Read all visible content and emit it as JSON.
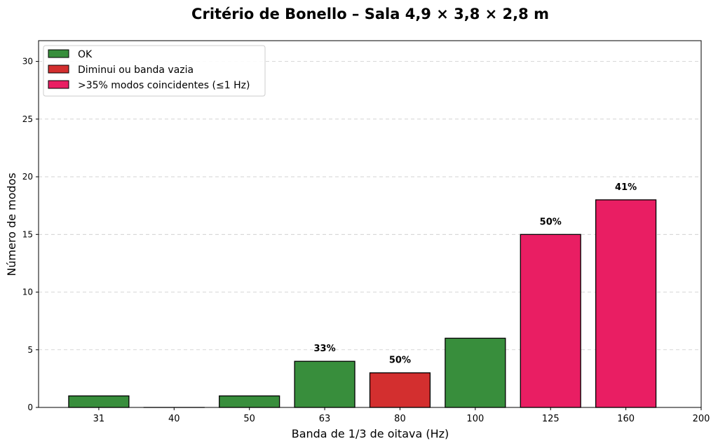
{
  "chart_data": {
    "type": "bar",
    "title": "Critério de Bonello – Sala 4,9 × 3,8 × 2,8 m",
    "xlabel": "Banda de 1/3 de oitava (Hz)",
    "ylabel": "Número de modos",
    "categories": [
      "31",
      "40",
      "50",
      "63",
      "80",
      "100",
      "125",
      "160"
    ],
    "x_tick_labels": [
      "31",
      "40",
      "50",
      "63",
      "80",
      "100",
      "125",
      "160",
      "200"
    ],
    "values": [
      1,
      0,
      1,
      4,
      3,
      6,
      15,
      18
    ],
    "status": [
      "ok",
      "ok",
      "ok",
      "ok",
      "bad",
      "ok",
      "coinc",
      "coinc"
    ],
    "data_labels": [
      "",
      "",
      "",
      "33%",
      "50%",
      "",
      "50%",
      "41%"
    ],
    "ylim": [
      0,
      31.8
    ],
    "yticks": [
      0,
      5,
      10,
      15,
      20,
      25,
      30
    ],
    "grid": "y dashed",
    "legend_position": "top-left",
    "legend": [
      {
        "key": "ok",
        "label": "OK",
        "color": "#388e3c"
      },
      {
        "key": "bad",
        "label": "Diminui ou banda vazia",
        "color": "#d32f2f"
      },
      {
        "key": "coinc",
        "label": ">35% modos coincidentes (≤1 Hz)",
        "color": "#e91e63"
      }
    ]
  }
}
